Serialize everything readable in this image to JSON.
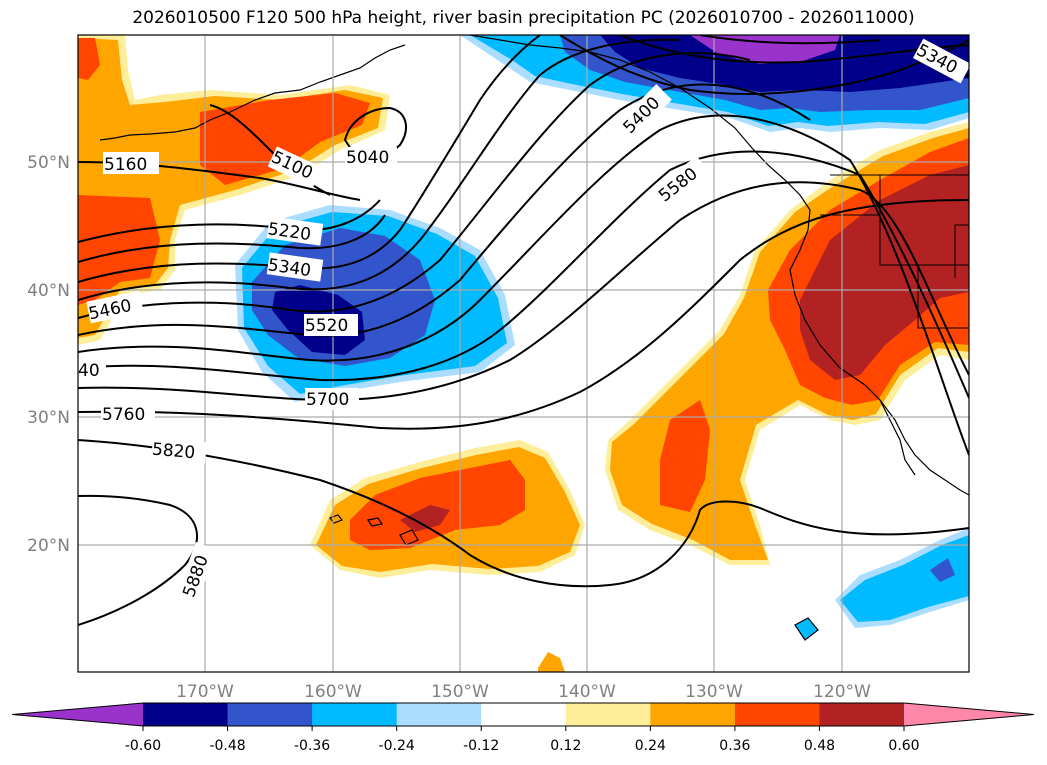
{
  "title": "2026010500 F120 500 hPa height, river basin precipitation PC (2026010700 - 2026011000)",
  "lat_labels": [
    "50°N",
    "40°N",
    "30°N",
    "20°N"
  ],
  "lon_labels": [
    "170°W",
    "160°W",
    "150°W",
    "140°W",
    "130°W",
    "120°W"
  ],
  "contour_labels": [
    "5160",
    "5100",
    "5040",
    "5220",
    "5340",
    "5460",
    "5520",
    "40",
    "5700",
    "5760",
    "5820",
    "5880",
    "5400",
    "5580",
    "5340"
  ],
  "colorbar": {
    "ticks": [
      "-0.60",
      "-0.48",
      "-0.36",
      "-0.24",
      "-0.12",
      "0.12",
      "0.24",
      "0.36",
      "0.48",
      "0.60"
    ],
    "colors": [
      "#9933cc",
      "#00008b",
      "#3355cc",
      "#00bbff",
      "#aaddff",
      "#ffffff",
      "#ffee99",
      "#ffa500",
      "#ff4500",
      "#b22222",
      "#ff88aa"
    ]
  }
}
